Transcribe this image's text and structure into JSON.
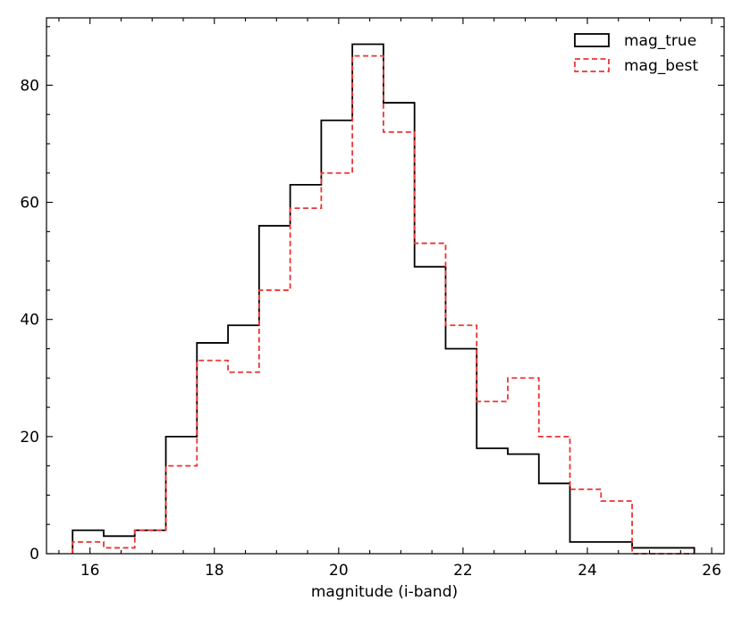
{
  "chart_data": {
    "type": "histogram",
    "xlabel": "magnitude (i-band)",
    "ylabel": "",
    "xlim": [
      15.3,
      26.2
    ],
    "ylim": [
      0,
      91.5
    ],
    "xticks": [
      16,
      18,
      20,
      22,
      24,
      26
    ],
    "yticks": [
      0,
      20,
      40,
      60,
      80
    ],
    "minor_xtick_step": 0.5,
    "minor_ytick_step": 5,
    "legend_position": "top-right",
    "bin_edges": [
      15.72,
      16.22,
      16.72,
      17.22,
      17.72,
      18.22,
      18.72,
      19.22,
      19.72,
      20.22,
      20.72,
      21.22,
      21.72,
      22.22,
      22.72,
      23.22,
      23.72,
      24.22,
      24.72,
      25.22,
      25.72
    ],
    "series": [
      {
        "name": "mag_true",
        "color": "#000000",
        "style": "solid",
        "values": [
          4,
          3,
          4,
          20,
          36,
          39,
          56,
          63,
          74,
          87,
          77,
          49,
          35,
          18,
          17,
          12,
          2,
          2,
          1,
          1
        ]
      },
      {
        "name": "mag_best",
        "color": "#ee3333",
        "style": "dashed",
        "values": [
          2,
          1,
          4,
          15,
          33,
          31,
          45,
          59,
          65,
          85,
          72,
          53,
          39,
          26,
          30,
          20,
          11,
          9,
          0,
          0
        ]
      }
    ]
  }
}
